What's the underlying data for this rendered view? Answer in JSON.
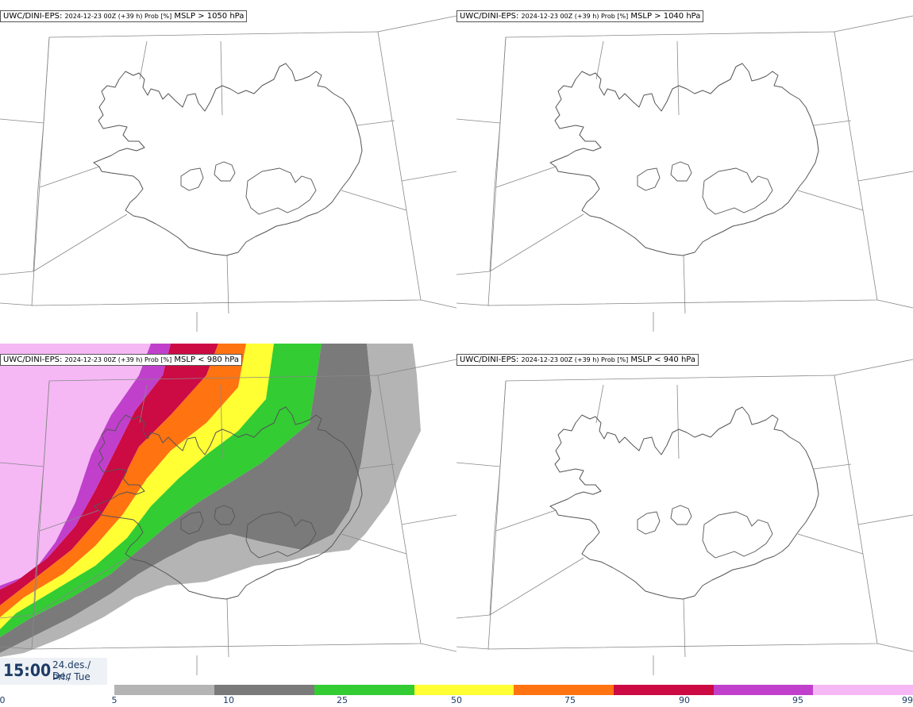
{
  "panels": [
    {
      "model": "UWC/DINI-EPS",
      "run": "2024-12-23 00Z (+39 h) Prob [%]",
      "variable": "MSLP > 1050 hPa",
      "filled": false
    },
    {
      "model": "UWC/DINI-EPS",
      "run": "2024-12-23 00Z (+39 h) Prob [%]",
      "variable": "MSLP > 1040 hPa",
      "filled": false
    },
    {
      "model": "UWC/DINI-EPS",
      "run": "2024-12-23 00Z (+39 h) Prob [%]",
      "variable": "MSLP < 980 hPa",
      "filled": true
    },
    {
      "model": "UWC/DINI-EPS",
      "run": "2024-12-23 00Z (+39 h) Prob [%]",
      "variable": "MSLP < 940 hPa",
      "filled": false
    }
  ],
  "valid_time": {
    "time": "15:00",
    "date_line1": "24.des./ Dec",
    "date_line2": "Þri./ Tue"
  },
  "colorbar": {
    "ticks": [
      "0",
      "5",
      "10",
      "25",
      "50",
      "75",
      "90",
      "95",
      "99"
    ],
    "colors": [
      "#b4b4b4",
      "#7a7a7a",
      "#33cc33",
      "#ffff33",
      "#ff7311",
      "#cc0a44",
      "#c040cc",
      "#f5b8f5"
    ]
  },
  "colors": {
    "coast": "#555555",
    "grid": "#888888",
    "text": "#1d3b66"
  }
}
